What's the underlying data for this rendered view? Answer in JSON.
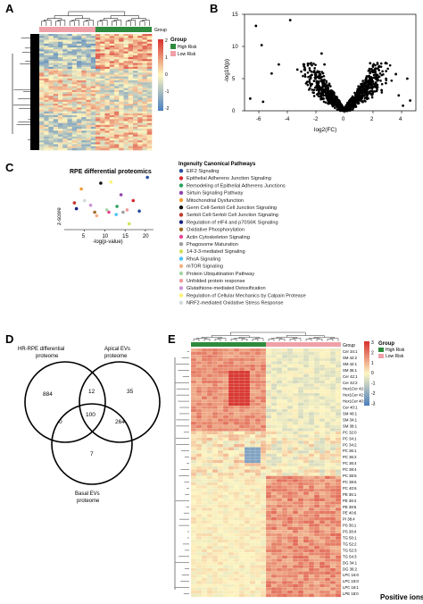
{
  "panels": {
    "A": "A",
    "B": "B",
    "C": "C",
    "D": "D",
    "E": "E"
  },
  "heatmap_a": {
    "group_title": "Group",
    "legend": [
      {
        "label": "High Risk",
        "color": "#2e8b3d"
      },
      {
        "label": "Low Risk",
        "color": "#f0a0a8"
      }
    ],
    "scale_ticks": [
      "2",
      "1",
      "0",
      "-1",
      "-2"
    ],
    "colors": {
      "high": "#d7302c",
      "mid": "#fdf5c0",
      "low": "#4a7fc0"
    }
  },
  "volcano": {
    "xlabel": "log2(FC)",
    "ylabel": "-log10(p)",
    "xticks": [
      "-6",
      "-4",
      "-2",
      "0",
      "2",
      "4"
    ],
    "yticks": [
      "0",
      "5",
      "10",
      "15"
    ]
  },
  "chart_data": [
    {
      "type": "scatter",
      "title": "",
      "xlabel": "log2(FC)",
      "ylabel": "-log10(p)",
      "xlim": [
        -7,
        5
      ],
      "ylim": [
        0,
        15
      ],
      "points": [
        [
          -6.2,
          13.2
        ],
        [
          -5.8,
          10.2
        ],
        [
          -3.8,
          14.1
        ],
        [
          -4.6,
          7.2
        ],
        [
          -5.1,
          5.8
        ],
        [
          -3.3,
          6.4
        ],
        [
          -6.6,
          1.9
        ],
        [
          -5.7,
          1.4
        ],
        [
          -2.6,
          4.5
        ],
        [
          2.9,
          4.3
        ],
        [
          3.6,
          5.7
        ],
        [
          2.4,
          6.8
        ],
        [
          4.4,
          5.0
        ],
        [
          4.6,
          1.6
        ],
        [
          3.8,
          2.4
        ],
        [
          4.1,
          0.8
        ],
        [
          -1.6,
          8.9
        ],
        [
          -1.4,
          7.2
        ],
        [
          1.8,
          7.4
        ],
        [
          2.6,
          3.2
        ]
      ]
    },
    {
      "type": "scatter",
      "title": "RPE differential proteomics",
      "xlabel": "-log(p-value)",
      "ylabel": "z-score",
      "xlim": [
        0,
        22
      ],
      "points": [
        [
          20.5,
          3.0
        ],
        [
          17.0,
          1.0
        ],
        [
          13.0,
          0.5
        ],
        [
          14.0,
          1.5
        ],
        [
          4.2,
          2.0
        ],
        [
          9.0,
          2.5
        ],
        [
          2.5,
          0.8
        ],
        [
          3.0,
          0.3
        ],
        [
          7.5,
          0.0
        ],
        [
          11.0,
          0.0
        ],
        [
          14.5,
          0.0
        ],
        [
          16.0,
          -1.0
        ],
        [
          12.8,
          -0.2
        ],
        [
          8.0,
          -0.3
        ],
        [
          10.5,
          0.2
        ],
        [
          15.5,
          0.2
        ],
        [
          6.5,
          0.6
        ],
        [
          11.5,
          2.6
        ],
        [
          5.0,
          1.0
        ],
        [
          18.5,
          0.1
        ]
      ]
    }
  ],
  "ipa": {
    "title": "Ingenuity Canonical Pathways",
    "pathways": [
      {
        "label": "EIF2 Signaling",
        "color": "#2a4fa0"
      },
      {
        "label": "Epithelial Adherens Junction Signaling",
        "color": "#d9272e"
      },
      {
        "label": "Remodeling of Epithelial Adherens Junctions",
        "color": "#2ca25f"
      },
      {
        "label": "Sirtuin Signaling Pathway",
        "color": "#8e44ad"
      },
      {
        "label": "Mitochondrial Dysfunction",
        "color": "#f39c34"
      },
      {
        "label": "Germ Cell-Sertoli Cell Junction Signaling",
        "color": "#111111"
      },
      {
        "label": "Sertoli Cell-Sertoli Cell Junction Signaling",
        "color": "#c0392b"
      },
      {
        "label": "Regulation of eIF4 and p70S6K Signaling",
        "color": "#1a237e"
      },
      {
        "label": "Oxidative Phosphorylation",
        "color": "#a06a2c"
      },
      {
        "label": "Actin Cytoskeleton Signaling",
        "color": "#e84393"
      },
      {
        "label": "Phagosome Maturation",
        "color": "#9e9e9e"
      },
      {
        "label": "14-3-3-mediated Signaling",
        "color": "#d4e157"
      },
      {
        "label": "RhoA Signaling",
        "color": "#4fc3f7"
      },
      {
        "label": "mTOR Signaling",
        "color": "#f4b183"
      },
      {
        "label": "Protein Ubiquitination Pathway",
        "color": "#a5d6a7"
      },
      {
        "label": "Unfolded protein response",
        "color": "#ef9a9a"
      },
      {
        "label": "Glutathione-mediated Detoxification",
        "color": "#ce93d8"
      },
      {
        "label": "Regulation of Cellular Mechanics by Calpain Protease",
        "color": "#fff176"
      },
      {
        "label": "NRF2-mediated Oxidative Stress Response",
        "color": "#cfd8dc"
      }
    ]
  },
  "venn": {
    "sets": [
      "HR-RPE differential proteome",
      "Apical EVs proteome",
      "Basal EVs proteome"
    ],
    "counts": {
      "a": "884",
      "ab": "12",
      "b": "35",
      "abc": "100",
      "ac": "0",
      "bc": "264",
      "c": "7"
    }
  },
  "heatmap_e": {
    "group_title": "Group",
    "legend": [
      {
        "label": "High Risk",
        "color": "#2e8b3d"
      },
      {
        "label": "Low Risk",
        "color": "#f0a0a8"
      }
    ],
    "scale_ticks": [
      "3",
      "2",
      "1",
      "0",
      "-1",
      "-2",
      "-3"
    ],
    "footer": "Positive ions",
    "rows": [
      "Cer 34:1",
      "SM 42:2",
      "SM 42:1",
      "SM 36:1",
      "Cer 42:1",
      "Cer 42:2",
      "Hex1Cer 42:2",
      "Hex1Cer 42:1",
      "Hex1Cer 40:1",
      "Cer 40:1",
      "SM 40:1",
      "SM 34:1",
      "SM 38:1",
      "PC 32:0",
      "PC 34:1",
      "PC 34:2",
      "PC 36:1",
      "PC 36:2",
      "PC 36:4",
      "PC 38:4",
      "PC 38:5",
      "PC 38:6",
      "PC 40:6",
      "PE 36:1",
      "PE 38:4",
      "PE 38:6",
      "PE 40:6",
      "PI 38:4",
      "PS 36:1",
      "PS 38:4",
      "TG 50:1",
      "TG 52:2",
      "TG 52:3",
      "TG 54:3",
      "DG 34:1",
      "DG 36:2",
      "LPC 16:0",
      "LPC 18:0",
      "LPC 18:1",
      "LPE 18:0"
    ]
  }
}
